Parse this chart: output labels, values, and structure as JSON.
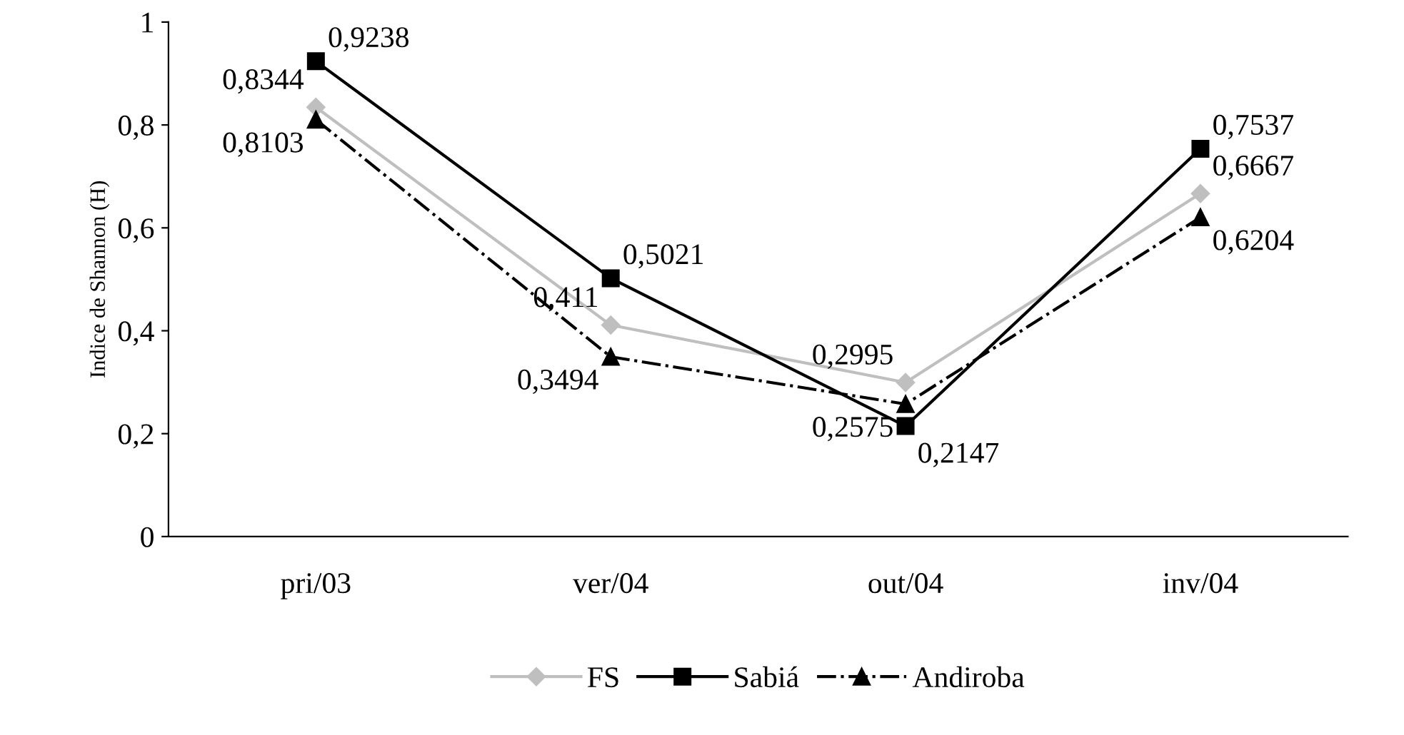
{
  "chart_data": {
    "type": "line",
    "ylabel": "Indice de Shannon (H)",
    "categories": [
      "pri/03",
      "ver/04",
      "out/04",
      "inv/04"
    ],
    "ylim": [
      0,
      1
    ],
    "yticks": [
      0,
      {
        "value": 0.2,
        "label": "0,2"
      },
      {
        "value": 0.4,
        "label": "0,4"
      },
      {
        "value": 0.6,
        "label": "0,6"
      },
      {
        "value": 0.8,
        "label": "0,8"
      },
      1
    ],
    "legend": "bottom",
    "series": [
      {
        "name": "FS",
        "color": "#bfbfbf",
        "marker": "diamond",
        "line_style": "solid",
        "values": [
          0.8344,
          0.411,
          0.2995,
          0.6667
        ],
        "value_labels": [
          "0,8344",
          "0,411",
          "0,2995",
          "0,6667"
        ]
      },
      {
        "name": "Sabiá",
        "color": "#000000",
        "marker": "square",
        "line_style": "solid",
        "values": [
          0.9238,
          0.5021,
          0.2147,
          0.7537
        ],
        "value_labels": [
          "0,9238",
          "0,5021",
          "0,2147",
          "0,7537"
        ]
      },
      {
        "name": "Andiroba",
        "color": "#000000",
        "marker": "triangle",
        "line_style": "dashdot",
        "values": [
          0.8103,
          0.3494,
          0.2575,
          0.6204
        ],
        "value_labels": [
          "0,8103",
          "0,3494",
          "0,2575",
          "0,6204"
        ]
      }
    ]
  }
}
